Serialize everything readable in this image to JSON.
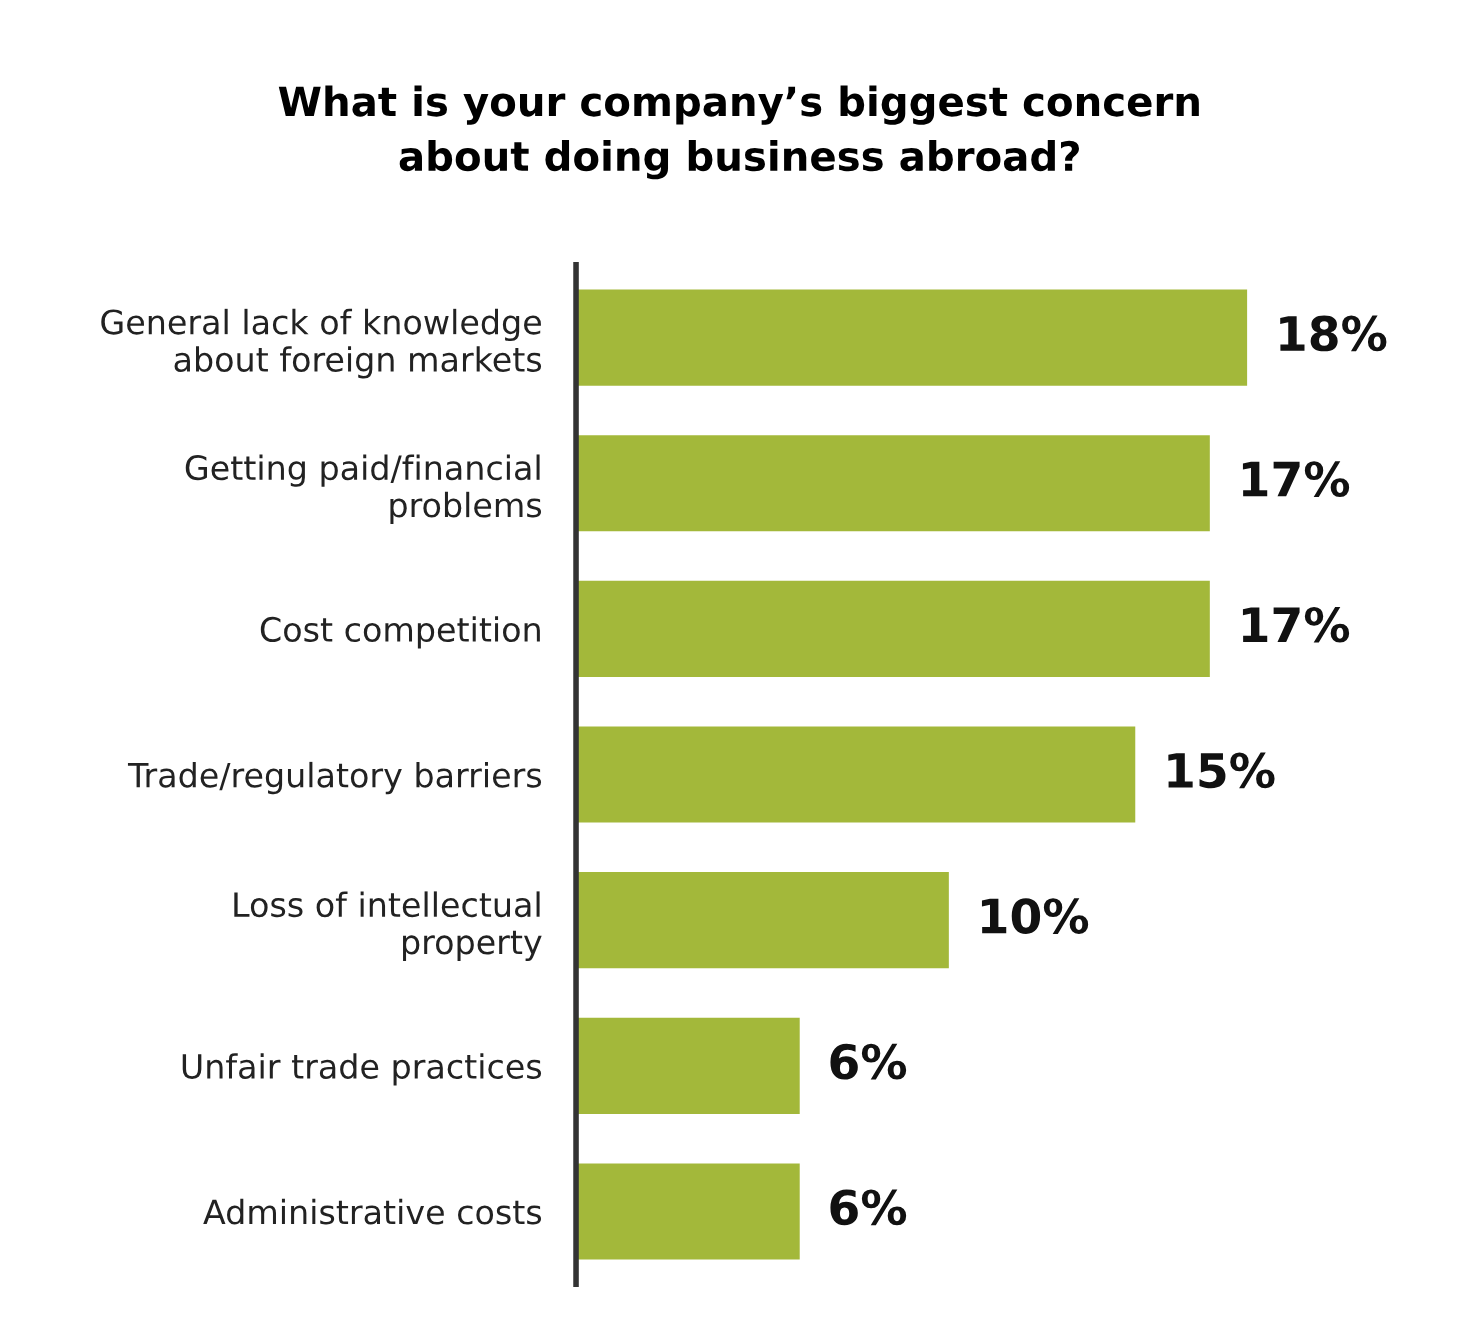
{
  "chart_data": {
    "type": "bar",
    "orientation": "horizontal",
    "title": "What is your company’s biggest concern\nabout doing business abroad?",
    "categories": [
      "General lack of knowledge\nabout foreign markets",
      "Getting paid/financial\nproblems",
      "Cost competition",
      "Trade/regulatory barriers",
      "Loss of intellectual\nproperty",
      "Unfair trade practices",
      "Administrative costs"
    ],
    "values": [
      18,
      17,
      17,
      15,
      10,
      6,
      6
    ],
    "value_labels": [
      "18%",
      "17%",
      "17%",
      "15%",
      "10%",
      "6%",
      "6%"
    ],
    "color": "#a3b83a",
    "grid": false,
    "legend": false
  }
}
